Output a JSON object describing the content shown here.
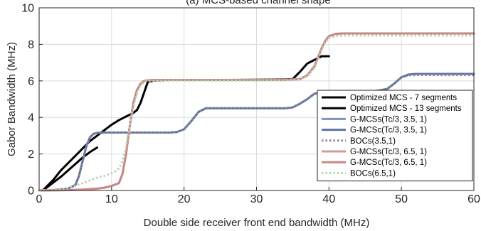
{
  "chart_data": {
    "type": "line",
    "title": "(a) MCS-based channel shape",
    "xlabel": "Double side receiver front end bandwidth (MHz)",
    "ylabel": "Gabor Bandwidth (MHz)",
    "xlim": [
      0,
      60
    ],
    "ylim": [
      0,
      10
    ],
    "xticks": [
      0,
      10,
      20,
      30,
      40,
      50,
      60
    ],
    "yticks": [
      0,
      2,
      4,
      6,
      8,
      10
    ],
    "grid": true,
    "legend_position": "right",
    "series": [
      {
        "name": "Optimized MCS - 7 segments",
        "color": "#000000",
        "dash": "solid",
        "x": [
          0.5,
          1,
          2,
          3,
          4,
          5,
          6,
          7,
          8
        ],
        "y": [
          0.0,
          0.15,
          0.45,
          0.75,
          1.1,
          1.45,
          1.8,
          2.1,
          2.35
        ]
      },
      {
        "name": "Optimized MCS - 13 segments",
        "color": "#000000",
        "dash": "solid",
        "x": [
          0.5,
          1,
          2,
          3,
          4,
          5,
          6,
          7,
          8,
          9,
          10,
          11,
          12,
          13,
          13.5,
          14,
          15,
          16,
          18,
          19,
          19.5,
          20,
          21,
          22,
          23,
          24,
          26,
          30,
          34,
          35,
          36,
          37,
          38,
          39,
          40
        ],
        "y": [
          0.0,
          0.2,
          0.6,
          1.1,
          1.5,
          1.9,
          2.3,
          2.7,
          3.0,
          3.3,
          3.6,
          3.85,
          4.05,
          4.25,
          4.4,
          4.8,
          5.95,
          6.03,
          6.05,
          6.05,
          6.05,
          6.05,
          6.05,
          6.05,
          6.05,
          6.05,
          6.05,
          6.06,
          6.08,
          6.1,
          6.5,
          6.95,
          7.15,
          7.35,
          7.35
        ]
      },
      {
        "name": "G-MCSs(Tc/3, 3.5, 1)",
        "color": "#7e93c2",
        "dash": "solid",
        "x": [
          0,
          2,
          4,
          5,
          5.5,
          6,
          6.5,
          7,
          7.5,
          8,
          9,
          10,
          12,
          14,
          16,
          18,
          19,
          20,
          21,
          22,
          23,
          24,
          26,
          30,
          34,
          35,
          36,
          37,
          38,
          40,
          42,
          46,
          48,
          49,
          50,
          51,
          52,
          54,
          60
        ],
        "y": [
          0.0,
          0.02,
          0.1,
          0.3,
          0.8,
          1.6,
          2.4,
          2.9,
          3.1,
          3.15,
          3.17,
          3.17,
          3.17,
          3.17,
          3.17,
          3.17,
          3.2,
          3.35,
          3.8,
          4.3,
          4.5,
          4.5,
          4.5,
          4.5,
          4.5,
          4.55,
          4.75,
          5.0,
          5.3,
          5.4,
          5.4,
          5.42,
          5.55,
          5.85,
          6.2,
          6.35,
          6.38,
          6.38,
          6.38
        ]
      },
      {
        "name": "G-MCSc(Tc/3, 3.5, 1)",
        "color": "#5e73a8",
        "dash": "solid",
        "x": [
          0,
          2,
          4,
          5,
          5.5,
          6,
          6.5,
          7,
          7.5,
          8,
          9,
          10,
          12,
          14,
          16,
          18,
          19,
          20,
          21,
          22,
          23,
          24,
          26,
          30,
          34,
          35,
          36,
          37,
          38,
          40,
          42,
          46,
          48,
          49,
          50,
          51,
          52,
          54,
          60
        ],
        "y": [
          0.0,
          0.02,
          0.1,
          0.3,
          0.8,
          1.6,
          2.4,
          2.9,
          3.1,
          3.15,
          3.17,
          3.17,
          3.17,
          3.17,
          3.17,
          3.17,
          3.2,
          3.35,
          3.8,
          4.3,
          4.5,
          4.5,
          4.5,
          4.5,
          4.5,
          4.55,
          4.75,
          5.0,
          5.3,
          5.4,
          5.4,
          5.42,
          5.55,
          5.85,
          6.2,
          6.35,
          6.38,
          6.38,
          6.38
        ]
      },
      {
        "name": "BOCs(3.5,1)",
        "color": "#888888",
        "dash": "dotted",
        "x": [
          0,
          2,
          4,
          5,
          5.5,
          6,
          6.5,
          7,
          7.5,
          8,
          9,
          10,
          12,
          14,
          16,
          18,
          19,
          20,
          21,
          22,
          23,
          24,
          26,
          30,
          34,
          35,
          36,
          37,
          38,
          40,
          42,
          46,
          48,
          49,
          50,
          51,
          52,
          54,
          60
        ],
        "y": [
          0.0,
          0.02,
          0.1,
          0.3,
          0.8,
          1.6,
          2.4,
          2.9,
          3.1,
          3.15,
          3.17,
          3.17,
          3.17,
          3.17,
          3.17,
          3.17,
          3.2,
          3.35,
          3.8,
          4.3,
          4.5,
          4.5,
          4.5,
          4.5,
          4.5,
          4.55,
          4.75,
          5.0,
          5.3,
          5.4,
          5.4,
          5.42,
          5.55,
          5.85,
          6.2,
          6.3,
          6.32,
          6.32,
          6.32
        ]
      },
      {
        "name": "G-MCSs(Tc/3, 6.5, 1)",
        "color": "#d99a9a",
        "dash": "solid",
        "x": [
          0,
          4,
          6,
          8,
          9,
          10,
          11,
          11.5,
          12,
          12.5,
          13,
          13.5,
          14,
          14.5,
          15,
          16,
          18,
          22,
          26,
          30,
          34,
          36,
          37,
          38,
          38.5,
          39,
          39.5,
          40,
          41,
          42,
          46,
          50,
          55,
          60
        ],
        "y": [
          0.0,
          0.02,
          0.05,
          0.1,
          0.15,
          0.25,
          0.4,
          0.9,
          2.0,
          3.5,
          4.8,
          5.5,
          5.85,
          6.0,
          6.03,
          6.05,
          6.05,
          6.05,
          6.05,
          6.05,
          6.06,
          6.1,
          6.3,
          6.8,
          7.3,
          7.8,
          8.2,
          8.45,
          8.58,
          8.6,
          8.6,
          8.6,
          8.6,
          8.6
        ]
      },
      {
        "name": "G-MCSc(Tc/3, 6.5, 1)",
        "color": "#c98787",
        "dash": "solid",
        "x": [
          0,
          4,
          6,
          8,
          9,
          10,
          11,
          11.5,
          12,
          12.5,
          13,
          13.5,
          14,
          14.5,
          15,
          16,
          18,
          22,
          26,
          30,
          34,
          36,
          37,
          38,
          38.5,
          39,
          39.5,
          40,
          41,
          42,
          46,
          50,
          55,
          60
        ],
        "y": [
          0.0,
          0.02,
          0.05,
          0.1,
          0.15,
          0.25,
          0.4,
          0.9,
          2.0,
          3.5,
          4.8,
          5.5,
          5.85,
          6.0,
          6.03,
          6.05,
          6.05,
          6.05,
          6.05,
          6.05,
          6.06,
          6.1,
          6.3,
          6.8,
          7.3,
          7.8,
          8.2,
          8.45,
          8.58,
          8.6,
          8.6,
          8.6,
          8.6,
          8.6
        ]
      },
      {
        "name": "BOCs(6.5,1)",
        "color": "#b5d4b0",
        "dash": "dotted",
        "x": [
          0,
          2,
          4,
          5,
          6,
          7,
          8,
          9,
          10,
          10.5,
          11,
          11.5,
          12,
          12.5,
          13,
          13.5,
          14,
          14.5,
          15,
          16,
          18,
          22,
          26,
          30,
          34,
          36,
          37,
          38,
          38.5,
          39,
          39.5,
          40,
          41,
          42,
          46,
          50,
          55,
          60
        ],
        "y": [
          0.0,
          0.05,
          0.12,
          0.25,
          0.4,
          0.55,
          0.7,
          0.8,
          0.95,
          1.05,
          1.2,
          1.6,
          2.4,
          3.5,
          4.6,
          5.3,
          5.75,
          5.95,
          6.0,
          6.02,
          6.02,
          6.02,
          6.02,
          6.02,
          6.03,
          6.08,
          6.25,
          6.7,
          7.2,
          7.7,
          8.1,
          8.35,
          8.45,
          8.48,
          8.48,
          8.48,
          8.48,
          8.48
        ]
      }
    ]
  }
}
